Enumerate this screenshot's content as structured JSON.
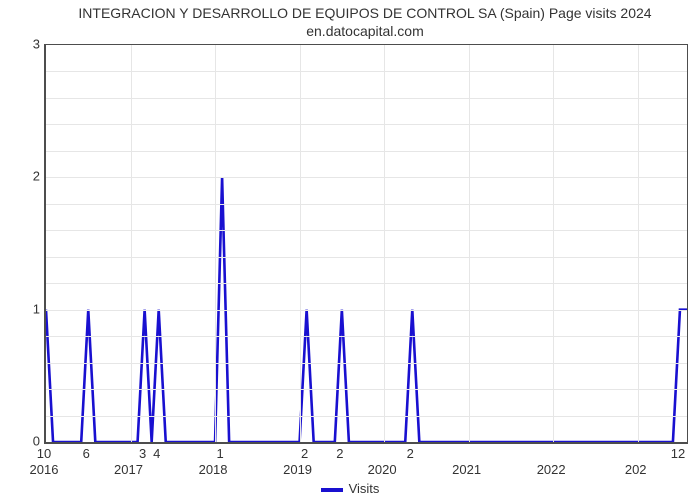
{
  "chart": {
    "type": "line",
    "title": "INTEGRACION Y DESARROLLO DE EQUIPOS DE CONTROL SA (Spain) Page visits 2024 en.datocapital.com",
    "title_fontsize": 14,
    "title_color": "#333333",
    "background_color": "#ffffff",
    "plot_border_color": "#4d4d4d",
    "grid_color": "#e6e6e6",
    "line_color": "#1910d0",
    "line_width": 2.6,
    "xlim": [
      0,
      91
    ],
    "ylim": [
      0,
      3
    ],
    "ytick_step_major": 1,
    "ytick_count_minor": 15,
    "xticks": [
      {
        "x": 0,
        "label": "2016"
      },
      {
        "x": 12,
        "label": "2017"
      },
      {
        "x": 24,
        "label": "2018"
      },
      {
        "x": 36,
        "label": "2019"
      },
      {
        "x": 48,
        "label": "2020"
      },
      {
        "x": 60,
        "label": "2021"
      },
      {
        "x": 72,
        "label": "2022"
      },
      {
        "x": 84,
        "label": "202"
      }
    ],
    "yticks": [
      {
        "y": 0,
        "label": "0"
      },
      {
        "y": 1,
        "label": "1"
      },
      {
        "y": 2,
        "label": "2"
      },
      {
        "y": 3,
        "label": "3"
      }
    ],
    "series": {
      "name": "Visits",
      "points": [
        {
          "x": 0,
          "y": 1.0,
          "label": "10"
        },
        {
          "x": 6,
          "y": 1.0,
          "label": "6"
        },
        {
          "x": 14,
          "y": 1.0,
          "label": "3"
        },
        {
          "x": 16,
          "y": 1.0,
          "label": "4"
        },
        {
          "x": 25,
          "y": 2.0,
          "label": "1"
        },
        {
          "x": 37,
          "y": 1.0,
          "label": "2"
        },
        {
          "x": 42,
          "y": 1.0,
          "label": "2"
        },
        {
          "x": 52,
          "y": 1.0,
          "label": "2"
        },
        {
          "x": 90,
          "y": 1.0,
          "label": "12"
        }
      ]
    },
    "legend_label": "Visits",
    "label_fontsize": 13
  }
}
